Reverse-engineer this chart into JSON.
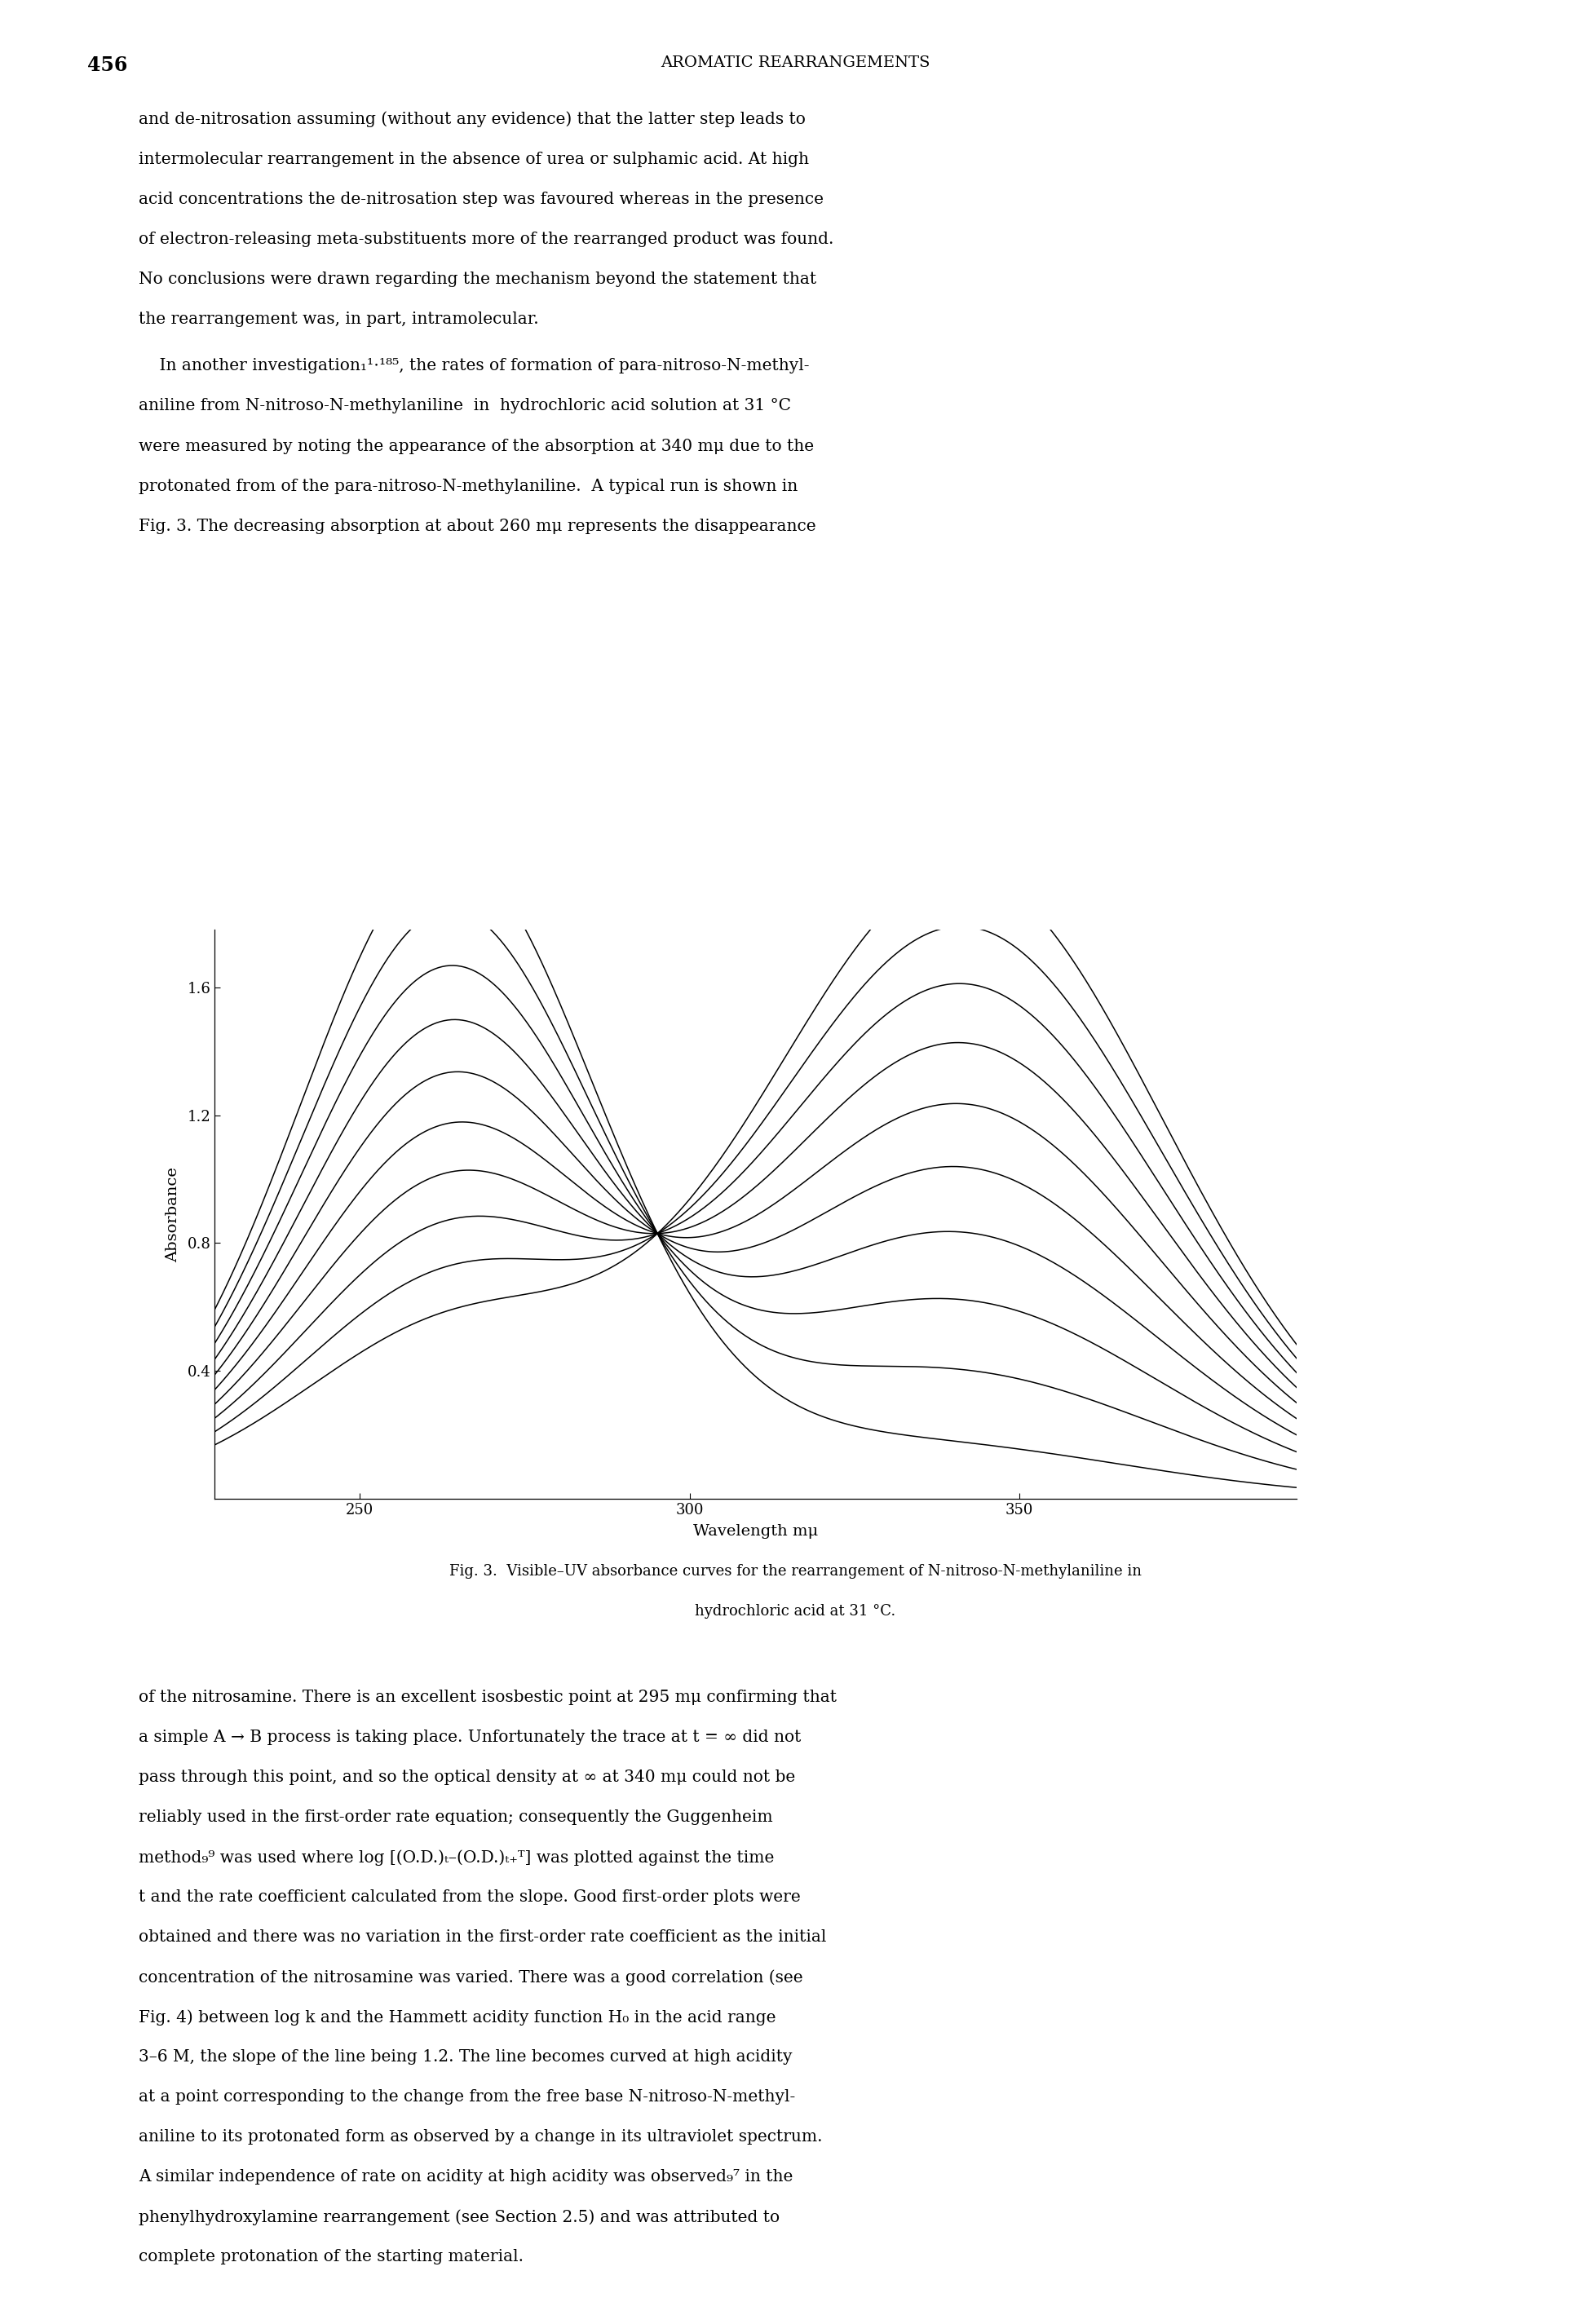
{
  "page_number": "456",
  "header": "AROMATIC REARRANGEMENTS",
  "para1_lines": [
    "and de-nitrosation assuming (without any evidence) that the latter step leads to",
    "intermolecular rearrangement in the absence of urea or sulphamic acid. At high",
    "acid concentrations the de-nitrosation step was favoured whereas in the presence",
    "of electron-releasing meta-substituents more of the rearranged product was found.",
    "No conclusions were drawn regarding the mechanism beyond the statement that",
    "the rearrangement was, in part, intramolecular."
  ],
  "para2_lines": [
    "    In another investigation₁¹⋅¹⁸⁵, the rates of formation of para-nitroso-N-methyl-",
    "aniline from N-nitroso-N-methylaniline  in  hydrochloric acid solution at 31 °C",
    "were measured by noting the appearance of the absorption at 340 mμ due to the",
    "protonated from of the para-nitroso-N-methylaniline.  A typical run is shown in",
    "Fig. 3. The decreasing absorption at about 260 mμ represents the disappearance"
  ],
  "caption_line1": "Fig. 3.  Visible–UV absorbance curves for the rearrangement of N-nitroso-N-methylaniline in",
  "caption_line2": "hydrochloric acid at 31 °C.",
  "para3_lines": [
    "of the nitrosamine. There is an excellent isosbestic point at 295 mμ confirming that",
    "a simple A → B process is taking place. Unfortunately the trace at t = ∞ did not",
    "pass through this point, and so the optical density at ∞ at 340 mμ could not be",
    "reliably used in the first-order rate equation; consequently the Guggenheim",
    "method₉⁹ was used where log [(O.D.)ₜ–(O.D.)ₜ₊ᵀ] was plotted against the time",
    "t and the rate coefficient calculated from the slope. Good first-order plots were",
    "obtained and there was no variation in the first-order rate coefficient as the initial",
    "concentration of the nitrosamine was varied. There was a good correlation (see",
    "Fig. 4) between log k and the Hammett acidity function H₀ in the acid range",
    "3–6 M, the slope of the line being 1.2. The line becomes curved at high acidity",
    "at a point corresponding to the change from the free base N-nitroso-N-methyl-",
    "aniline to its protonated form as observed by a change in its ultraviolet spectrum.",
    "A similar independence of rate on acidity at high acidity was observed₉⁷ in the",
    "phenylhydroxylamine rearrangement (see Section 2.5) and was attributed to",
    "complete protonation of the starting material."
  ],
  "xlabel": "Wavelength mμ",
  "ylabel": "Absorbance",
  "xmin": 228,
  "xmax": 392,
  "ymin": 0.0,
  "ymax": 1.78,
  "xticks": [
    250,
    300,
    350
  ],
  "yticks": [
    0.4,
    0.8,
    1.2,
    1.6
  ],
  "isosbestic_x": 295,
  "isosbestic_y": 0.83,
  "num_curves": 10,
  "background": "#ffffff",
  "line_color": "#000000"
}
